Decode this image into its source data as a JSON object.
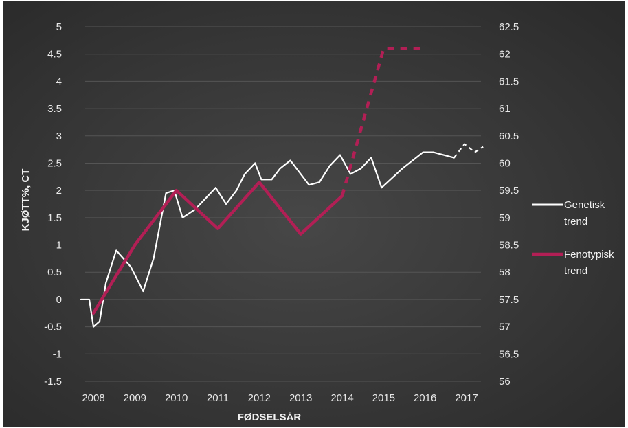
{
  "chart_data": {
    "type": "line",
    "title": "",
    "xlabel": "FØDSELSÅR",
    "ylabel": "KJØTT%, CT",
    "x_ticks": [
      "2008",
      "2009",
      "2010",
      "2011",
      "2012",
      "2013",
      "2014",
      "2015",
      "2016",
      "2017"
    ],
    "ylim": [
      -1.5,
      5
    ],
    "y_ticks": [
      "5",
      "4.5",
      "4",
      "3.5",
      "3",
      "2.5",
      "2",
      "1.5",
      "1",
      "0.5",
      "0",
      "-0.5",
      "-1",
      "-1.5"
    ],
    "y2lim": [
      56,
      62.5
    ],
    "y2_ticks": [
      "62.5",
      "62",
      "61.5",
      "61",
      "60.5",
      "60",
      "59.5",
      "59",
      "58.5",
      "58",
      "57.5",
      "57",
      "56.5",
      "56"
    ],
    "grid": true,
    "legend_position": "right",
    "series": [
      {
        "name": "Genetisk trend",
        "axis": "left",
        "color": "#ffffff",
        "x": [
          2007.7,
          2007.9,
          2008.0,
          2008.15,
          2008.3,
          2008.55,
          2008.9,
          2009.2,
          2009.45,
          2009.75,
          2009.95,
          2010.15,
          2010.45,
          2010.7,
          2010.95,
          2011.2,
          2011.45,
          2011.65,
          2011.9,
          2012.05,
          2012.3,
          2012.5,
          2012.75,
          2012.95,
          2013.2,
          2013.45,
          2013.7,
          2013.95,
          2014.2,
          2014.45,
          2014.7,
          2014.95,
          2015.45,
          2015.95,
          2016.2,
          2016.45,
          2016.7,
          2016.95,
          2017.2,
          2017.4
        ],
        "y": [
          0.0,
          0.0,
          -0.5,
          -0.4,
          0.3,
          0.9,
          0.6,
          0.15,
          0.75,
          1.95,
          2.0,
          1.5,
          1.65,
          1.85,
          2.05,
          1.75,
          2.0,
          2.3,
          2.5,
          2.2,
          2.2,
          2.4,
          2.55,
          2.35,
          2.1,
          2.15,
          2.45,
          2.65,
          2.3,
          2.4,
          2.6,
          2.05,
          2.4,
          2.7,
          2.7,
          2.65,
          2.6,
          2.85,
          2.7,
          2.8
        ],
        "dashed_from_x": 2016.7
      },
      {
        "name": "Fenotypisk trend",
        "axis": "right",
        "color": "#b21f55",
        "x": [
          2008,
          2009,
          2010,
          2011,
          2012,
          2013,
          2014,
          2015,
          2016
        ],
        "y": [
          57.25,
          58.5,
          59.5,
          58.8,
          59.65,
          58.7,
          59.4,
          62.1,
          62.1
        ],
        "dashed_from_x": 2014
      }
    ],
    "legend": [
      {
        "name": "Genetisk trend",
        "lines": [
          "Genetisk",
          "trend"
        ],
        "color": "#ffffff"
      },
      {
        "name": "Fenotypisk trend",
        "lines": [
          "Fenotypisk",
          "trend"
        ],
        "color": "#b21f55"
      }
    ],
    "background": "#3a3a3a"
  }
}
